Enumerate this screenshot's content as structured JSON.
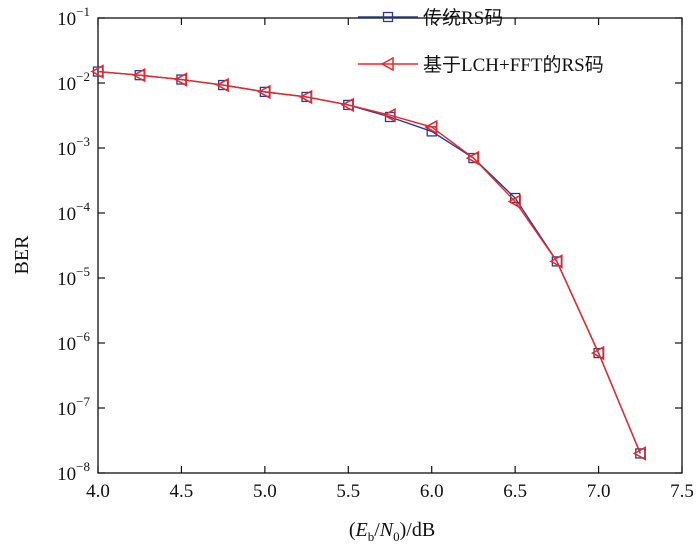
{
  "chart_data": {
    "type": "line",
    "title": "",
    "xlabel": {
      "prefix": "(",
      "e": "E",
      "e_sub": "b",
      "slash": "/",
      "n": "N",
      "n_sub": "0",
      "suffix": ")/dB"
    },
    "ylabel": "BER",
    "y_scale": "log",
    "xlim": [
      4.0,
      7.5
    ],
    "ylim": [
      1e-08,
      0.1
    ],
    "grid": false,
    "legend_position": "top-right",
    "x_ticks": [
      "4.0",
      "4.5",
      "5.0",
      "5.5",
      "6.0",
      "6.5",
      "7.0",
      "7.5"
    ],
    "y_ticks": [
      {
        "base": "10",
        "exp": "−1",
        "value": 0.1
      },
      {
        "base": "10",
        "exp": "−2",
        "value": 0.01
      },
      {
        "base": "10",
        "exp": "−3",
        "value": 0.001
      },
      {
        "base": "10",
        "exp": "−4",
        "value": 0.0001
      },
      {
        "base": "10",
        "exp": "−5",
        "value": 1e-05
      },
      {
        "base": "10",
        "exp": "−6",
        "value": 1e-06
      },
      {
        "base": "10",
        "exp": "−7",
        "value": 1e-07
      },
      {
        "base": "10",
        "exp": "−8",
        "value": 1e-08
      }
    ],
    "series": [
      {
        "name": "传统RS码",
        "color": "#2b3a8f",
        "marker": "square",
        "x": [
          4.0,
          4.25,
          4.5,
          4.75,
          5.0,
          5.25,
          5.5,
          5.75,
          6.0,
          6.25,
          6.5,
          6.75,
          7.0,
          7.25
        ],
        "y": [
          0.015,
          0.0132,
          0.0113,
          0.0093,
          0.0073,
          0.0061,
          0.0046,
          0.003,
          0.0018,
          0.0007,
          0.00017,
          1.8e-05,
          7e-07,
          2e-08
        ]
      },
      {
        "name": "基于LCH+FFT的RS码",
        "color": "#e8282b",
        "marker": "triangle-left",
        "x": [
          4.0,
          4.25,
          4.5,
          4.75,
          5.0,
          5.25,
          5.5,
          5.75,
          6.0,
          6.25,
          6.5,
          6.75,
          7.0,
          7.25
        ],
        "y": [
          0.015,
          0.0132,
          0.0113,
          0.0093,
          0.0073,
          0.0061,
          0.0046,
          0.0032,
          0.0021,
          0.0007,
          0.00015,
          1.8e-05,
          7e-07,
          2e-08
        ]
      }
    ]
  }
}
